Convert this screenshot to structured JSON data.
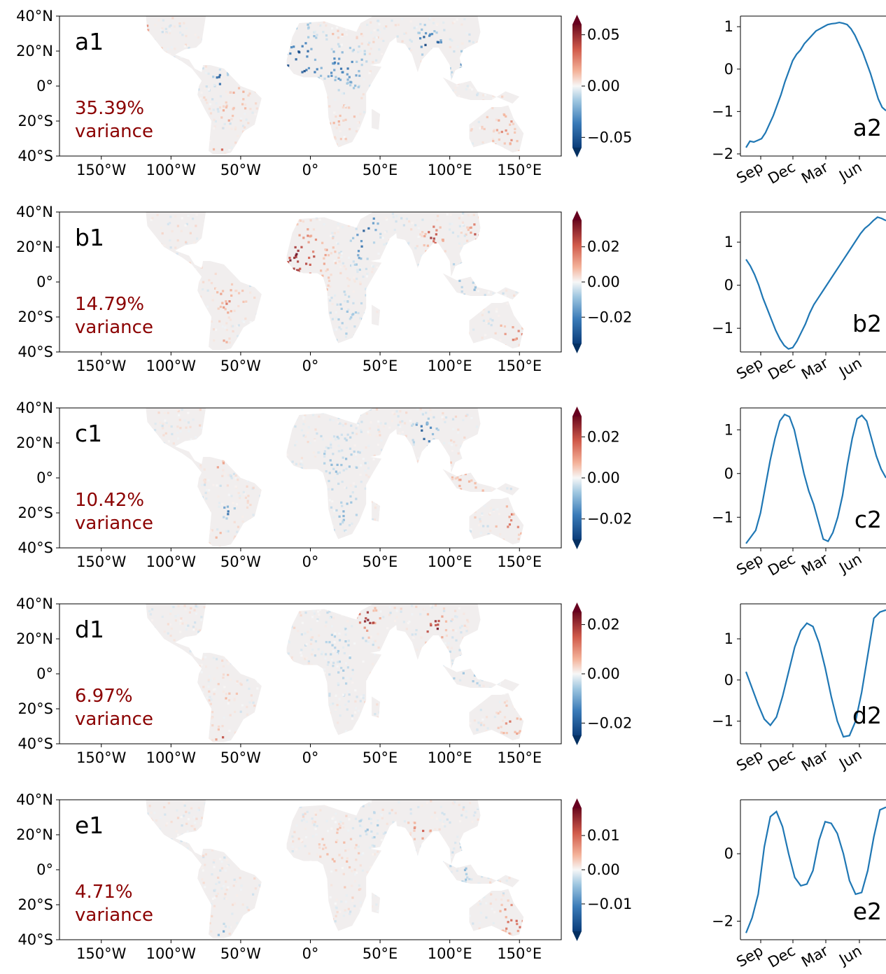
{
  "chart_data": [
    {
      "type": "heatmap",
      "panel_label": "a1",
      "variance_text": [
        "35.39%",
        "variance"
      ],
      "x_ticks": [
        "150°W",
        "100°W",
        "50°W",
        "0°",
        "50°E",
        "100°E",
        "150°E"
      ],
      "y_ticks": [
        "40°N",
        "20°N",
        "0°",
        "20°S",
        "40°S"
      ],
      "xlim": [
        -180,
        180
      ],
      "ylim": [
        -40,
        40
      ],
      "colorbar": {
        "ticks": [
          "0.05",
          "0.00",
          "−0.05"
        ],
        "range": [
          -0.06,
          0.06
        ],
        "cmap": "RdBu_r",
        "extend": "both"
      }
    },
    {
      "type": "line",
      "panel_label": "a2",
      "x_ticks": [
        "Sep",
        "Dec",
        "Mar",
        "Jun"
      ],
      "y_ticks": [
        "1",
        "0",
        "−1",
        "−2"
      ],
      "ylim": [
        -2.05,
        1.25
      ],
      "series": [
        {
          "values": [
            -1.85,
            -1.7,
            -1.72,
            -1.68,
            -1.64,
            -1.5,
            -1.3,
            -1.1,
            -0.85,
            -0.6,
            -0.3,
            -0.05,
            0.2,
            0.35,
            0.45,
            0.6,
            0.7,
            0.8,
            0.9,
            0.95,
            1.0,
            1.05,
            1.07,
            1.08,
            1.1,
            1.08,
            1.05,
            0.95,
            0.8,
            0.6,
            0.4,
            0.15,
            -0.1,
            -0.4,
            -0.7,
            -0.9,
            -0.98
          ]
        }
      ]
    },
    {
      "type": "heatmap",
      "panel_label": "b1",
      "variance_text": [
        "14.79%",
        "variance"
      ],
      "x_ticks": [
        "150°W",
        "100°W",
        "50°W",
        "0°",
        "50°E",
        "100°E",
        "150°E"
      ],
      "y_ticks": [
        "40°N",
        "20°N",
        "0°",
        "20°S",
        "40°S"
      ],
      "xlim": [
        -180,
        180
      ],
      "ylim": [
        -40,
        40
      ],
      "colorbar": {
        "ticks": [
          "0.02",
          "0.00",
          "−0.02"
        ],
        "range": [
          -0.035,
          0.035
        ],
        "cmap": "RdBu_r",
        "extend": "both"
      }
    },
    {
      "type": "line",
      "panel_label": "b2",
      "x_ticks": [
        "Sep",
        "Dec",
        "Mar",
        "Jun"
      ],
      "y_ticks": [
        "1",
        "0",
        "−1"
      ],
      "ylim": [
        -1.55,
        1.7
      ],
      "series": [
        {
          "values": [
            0.6,
            0.45,
            0.25,
            0.0,
            -0.3,
            -0.55,
            -0.8,
            -1.05,
            -1.25,
            -1.4,
            -1.48,
            -1.45,
            -1.3,
            -1.1,
            -0.9,
            -0.65,
            -0.45,
            -0.3,
            -0.15,
            0.0,
            0.15,
            0.3,
            0.45,
            0.6,
            0.75,
            0.9,
            1.05,
            1.2,
            1.32,
            1.4,
            1.5,
            1.58,
            1.55,
            1.5
          ]
        }
      ]
    },
    {
      "type": "heatmap",
      "panel_label": "c1",
      "variance_text": [
        "10.42%",
        "variance"
      ],
      "x_ticks": [
        "150°W",
        "100°W",
        "50°W",
        "0°",
        "50°E",
        "100°E",
        "150°E"
      ],
      "y_ticks": [
        "40°N",
        "20°N",
        "0°",
        "20°S",
        "40°S"
      ],
      "xlim": [
        -180,
        180
      ],
      "ylim": [
        -40,
        40
      ],
      "colorbar": {
        "ticks": [
          "0.02",
          "0.00",
          "−0.02"
        ],
        "range": [
          -0.03,
          0.03
        ],
        "cmap": "RdBu_r",
        "extend": "both"
      }
    },
    {
      "type": "line",
      "panel_label": "c2",
      "x_ticks": [
        "Sep",
        "Dec",
        "Mar",
        "Jun"
      ],
      "y_ticks": [
        "1",
        "0",
        "−1"
      ],
      "ylim": [
        -1.7,
        1.5
      ],
      "series": [
        {
          "values": [
            -1.6,
            -1.45,
            -1.3,
            -0.9,
            -0.3,
            0.3,
            0.8,
            1.2,
            1.35,
            1.3,
            1.0,
            0.5,
            0.0,
            -0.4,
            -0.7,
            -1.1,
            -1.5,
            -1.55,
            -1.35,
            -1.0,
            -0.5,
            0.2,
            0.8,
            1.25,
            1.33,
            1.2,
            0.8,
            0.4,
            0.1,
            -0.1
          ]
        }
      ]
    },
    {
      "type": "heatmap",
      "panel_label": "d1",
      "variance_text": [
        "6.97%",
        "variance"
      ],
      "x_ticks": [
        "150°W",
        "100°W",
        "50°W",
        "0°",
        "50°E",
        "100°E",
        "150°E"
      ],
      "y_ticks": [
        "40°N",
        "20°N",
        "0°",
        "20°S",
        "40°S"
      ],
      "xlim": [
        -180,
        180
      ],
      "ylim": [
        -40,
        40
      ],
      "colorbar": {
        "ticks": [
          "0.02",
          "0.00",
          "−0.02"
        ],
        "range": [
          -0.025,
          0.025
        ],
        "cmap": "RdBu_r",
        "extend": "both"
      }
    },
    {
      "type": "line",
      "panel_label": "d2",
      "x_ticks": [
        "Sep",
        "Dec",
        "Mar",
        "Jun"
      ],
      "y_ticks": [
        "1",
        "0",
        "−1"
      ],
      "ylim": [
        -1.55,
        1.85
      ],
      "series": [
        {
          "values": [
            0.2,
            -0.2,
            -0.6,
            -0.95,
            -1.1,
            -0.9,
            -0.4,
            0.2,
            0.8,
            1.2,
            1.38,
            1.3,
            0.9,
            0.3,
            -0.4,
            -1.0,
            -1.38,
            -1.35,
            -1.0,
            -0.3,
            0.6,
            1.5,
            1.65,
            1.7
          ]
        }
      ]
    },
    {
      "type": "heatmap",
      "panel_label": "e1",
      "variance_text": [
        "4.71%",
        "variance"
      ],
      "x_ticks": [
        "150°W",
        "100°W",
        "50°W",
        "0°",
        "50°E",
        "100°E",
        "150°E"
      ],
      "y_ticks": [
        "40°N",
        "20°N",
        "0°",
        "20°S",
        "40°S"
      ],
      "xlim": [
        -180,
        180
      ],
      "ylim": [
        -40,
        40
      ],
      "colorbar": {
        "ticks": [
          "0.01",
          "0.00",
          "−0.01"
        ],
        "range": [
          -0.018,
          0.018
        ],
        "cmap": "RdBu_r",
        "extend": "both"
      }
    },
    {
      "type": "line",
      "panel_label": "e2",
      "x_ticks": [
        "Sep",
        "Dec",
        "Mar",
        "Jun"
      ],
      "y_ticks": [
        "0",
        "−2"
      ],
      "ylim": [
        -2.55,
        1.6
      ],
      "series": [
        {
          "values": [
            -2.35,
            -1.9,
            -1.2,
            0.2,
            1.1,
            1.25,
            0.8,
            0.0,
            -0.7,
            -0.95,
            -0.9,
            -0.5,
            0.4,
            0.95,
            0.9,
            0.6,
            0.0,
            -0.8,
            -1.2,
            -1.15,
            -0.5,
            0.5,
            1.3,
            1.38
          ]
        }
      ]
    }
  ]
}
